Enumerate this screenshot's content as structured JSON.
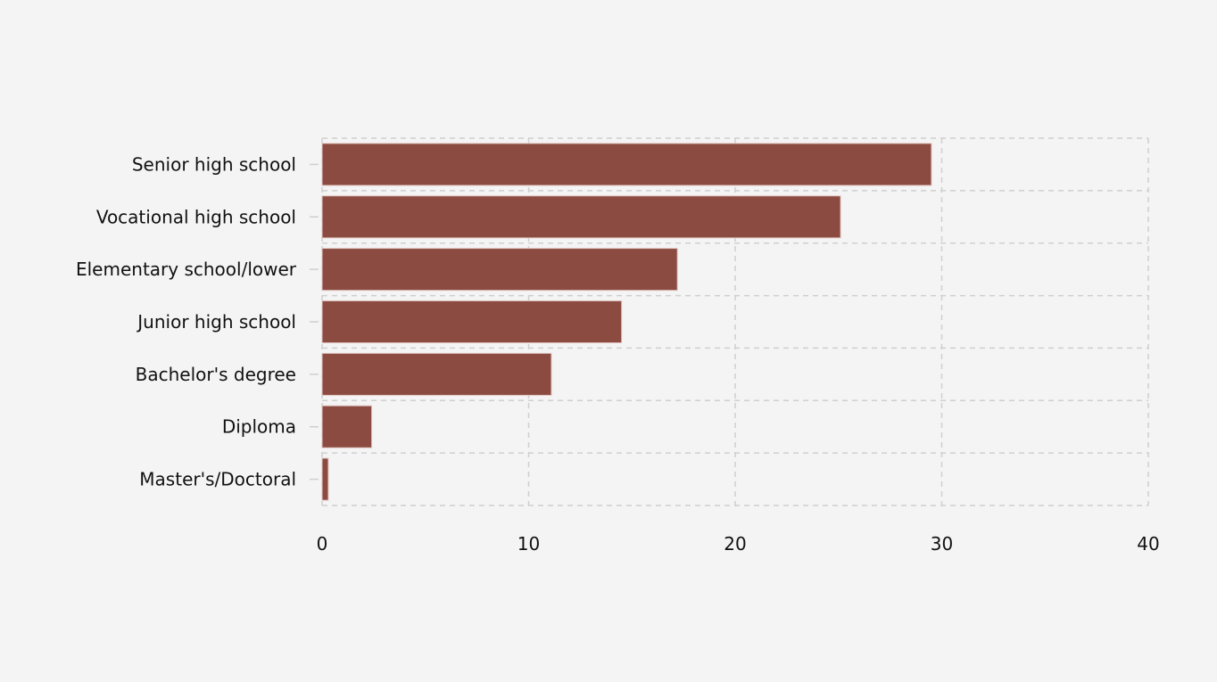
{
  "chart_data": {
    "type": "bar",
    "orientation": "horizontal",
    "title": "",
    "xlabel": "",
    "ylabel": "",
    "categories": [
      "Senior high school",
      "Vocational high school",
      "Elementary school/lower",
      "Junior high school",
      "Bachelor's degree",
      "Diploma",
      "Master's/Doctoral"
    ],
    "values": [
      29.5,
      25.1,
      17.2,
      14.5,
      11.1,
      2.4,
      0.3
    ],
    "xlim": [
      0,
      40
    ],
    "xticks": [
      0,
      10,
      20,
      30,
      40
    ],
    "xtick_labels": [
      "0",
      "10",
      "20",
      "30",
      "40"
    ],
    "grid": true,
    "legend": "none",
    "bar_color": "#8c4b40"
  }
}
